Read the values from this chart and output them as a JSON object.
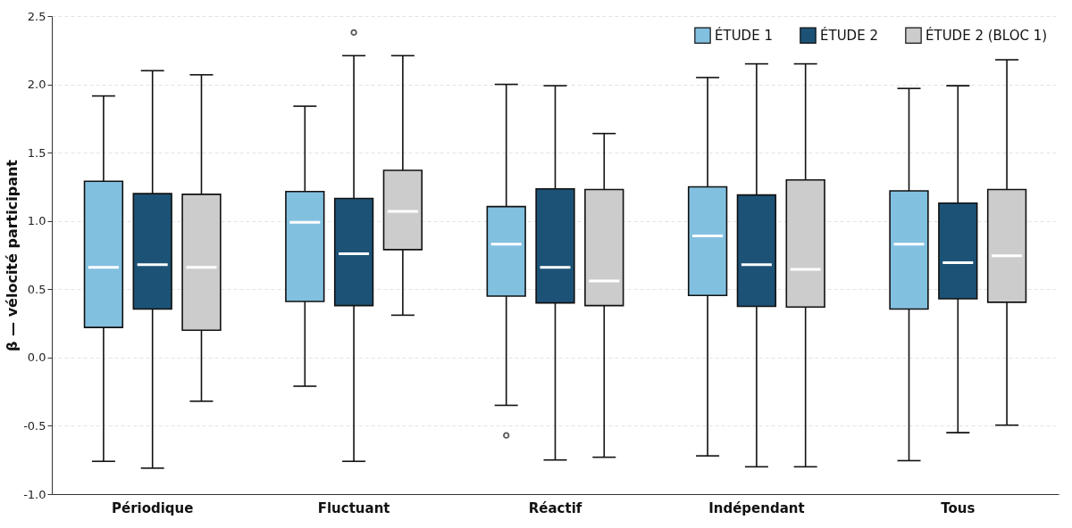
{
  "chart_data": {
    "type": "box",
    "ylabel": "β — vélocité participant",
    "categories": [
      "Périodique",
      "Fluctuant",
      "Réactif",
      "Indépendant",
      "Tous"
    ],
    "series": [
      {
        "name": "ÉTUDE 1",
        "color": "#82c0e0",
        "boxes": [
          {
            "low": -0.76,
            "q1": 0.22,
            "median": 0.66,
            "q3": 1.29,
            "high": 1.915
          },
          {
            "low": -0.21,
            "q1": 0.41,
            "median": 0.99,
            "q3": 1.215,
            "high": 1.84
          },
          {
            "low": -0.35,
            "q1": 0.45,
            "median": 0.83,
            "q3": 1.105,
            "high": 2.0,
            "outliers": [
              -0.57
            ]
          },
          {
            "low": -0.72,
            "q1": 0.455,
            "median": 0.89,
            "q3": 1.25,
            "high": 2.05
          },
          {
            "low": -0.755,
            "q1": 0.355,
            "median": 0.83,
            "q3": 1.22,
            "high": 1.97
          }
        ]
      },
      {
        "name": "ÉTUDE 2",
        "color": "#1c5276",
        "boxes": [
          {
            "low": -0.81,
            "q1": 0.355,
            "median": 0.68,
            "q3": 1.2,
            "high": 2.1
          },
          {
            "low": -0.76,
            "q1": 0.38,
            "median": 0.76,
            "q3": 1.165,
            "high": 2.21,
            "outliers": [
              2.38
            ]
          },
          {
            "low": -0.75,
            "q1": 0.4,
            "median": 0.66,
            "q3": 1.235,
            "high": 1.99
          },
          {
            "low": -0.8,
            "q1": 0.375,
            "median": 0.68,
            "q3": 1.19,
            "high": 2.15
          },
          {
            "low": -0.55,
            "q1": 0.43,
            "median": 0.695,
            "q3": 1.13,
            "high": 1.99
          }
        ]
      },
      {
        "name": "ÉTUDE 2 (BLOC 1)",
        "color": "#cccccc",
        "boxes": [
          {
            "low": -0.32,
            "q1": 0.2,
            "median": 0.66,
            "q3": 1.195,
            "high": 2.07
          },
          {
            "low": 0.31,
            "q1": 0.79,
            "median": 1.07,
            "q3": 1.37,
            "high": 2.21
          },
          {
            "low": -0.73,
            "q1": 0.38,
            "median": 0.56,
            "q3": 1.23,
            "high": 1.64
          },
          {
            "low": -0.8,
            "q1": 0.37,
            "median": 0.645,
            "q3": 1.3,
            "high": 2.15
          },
          {
            "low": -0.495,
            "q1": 0.405,
            "median": 0.745,
            "q3": 1.23,
            "high": 2.18
          }
        ]
      }
    ],
    "ylim": [
      -1.0,
      2.5
    ],
    "yticks": [
      {
        "value": -1.0,
        "label": "-1.0"
      },
      {
        "value": -0.5,
        "label": "-0.5"
      },
      {
        "value": 0.0,
        "label": "0.0"
      },
      {
        "value": 0.5,
        "label": "0.5"
      },
      {
        "value": 1.0,
        "label": "1.0"
      },
      {
        "value": 1.5,
        "label": "1.5"
      },
      {
        "value": 2.0,
        "label": "2.0"
      },
      2.5
    ],
    "grid": "y",
    "legend": "top right"
  }
}
